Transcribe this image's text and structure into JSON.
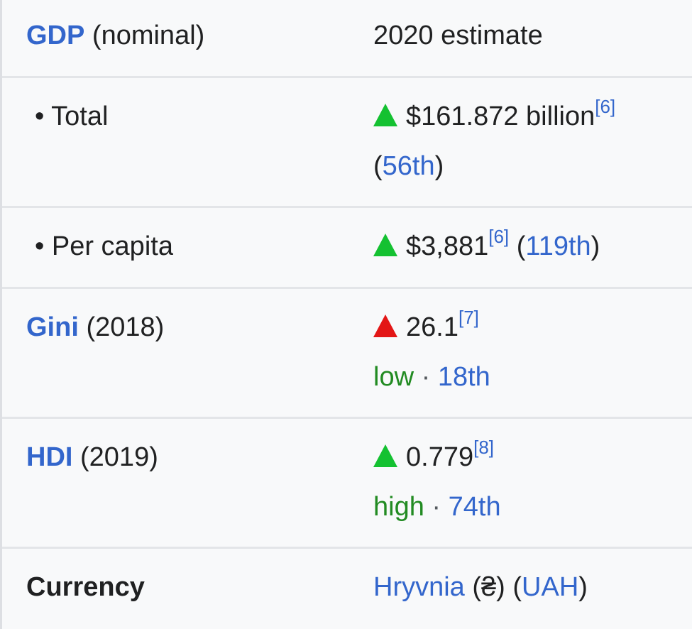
{
  "gdp_header": {
    "label_link": "GDP",
    "label_suffix": " (nominal)",
    "value": "2020 estimate"
  },
  "total": {
    "label": "• Total",
    "amount": "$161.872 billion",
    "ref": "[6]",
    "rank_open": "(",
    "rank_link": "56th",
    "rank_close": ")",
    "trend": "up-green-triangle"
  },
  "per_capita": {
    "label": "• Per capita",
    "amount": "$3,881",
    "ref": "[6]",
    "rank_open": " (",
    "rank_link": "119th",
    "rank_close": ")",
    "trend": "up-green-triangle"
  },
  "gini": {
    "label_link": "Gini",
    "label_suffix": " (2018)",
    "value": "26.1",
    "ref": "[7]",
    "level": "low",
    "sep": " · ",
    "rank_link": "18th",
    "trend": "up-red-triangle"
  },
  "hdi": {
    "label_link": "HDI",
    "label_suffix": " (2019)",
    "value": "0.779",
    "ref": "[8]",
    "level": "high",
    "sep": " · ",
    "rank_link": "74th",
    "trend": "up-green-triangle"
  },
  "currency": {
    "label": "Currency",
    "name_link": "Hryvnia",
    "symbol": " (₴) (",
    "code_link": "UAH",
    "close": ")"
  },
  "colors": {
    "link": "#3366cc",
    "level_text": "#228b22",
    "trend_up_green": "#14c131",
    "trend_up_red": "#e31616",
    "background": "#f8f9fa",
    "divider": "#e3e5e8"
  }
}
